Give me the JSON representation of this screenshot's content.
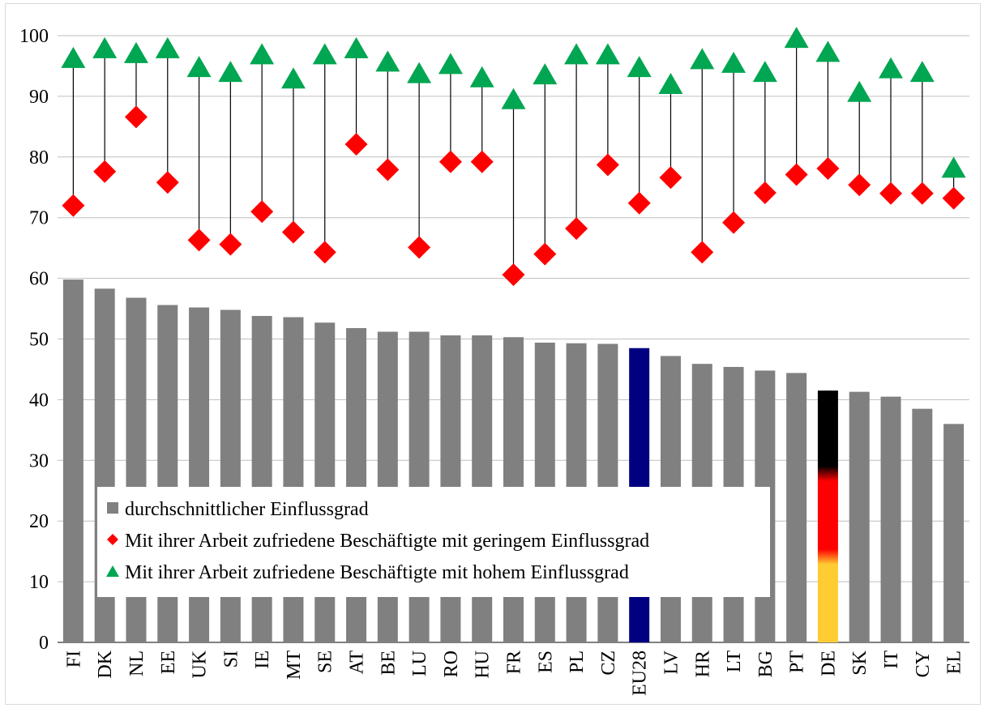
{
  "chart_data": {
    "type": "bar",
    "categories": [
      "FI",
      "DK",
      "NL",
      "EE",
      "UK",
      "SI",
      "IE",
      "MT",
      "SE",
      "AT",
      "BE",
      "LU",
      "RO",
      "HU",
      "FR",
      "ES",
      "PL",
      "CZ",
      "EU28",
      "LV",
      "HR",
      "LT",
      "BG",
      "PT",
      "DE",
      "SK",
      "IT",
      "CY",
      "EL"
    ],
    "series": [
      {
        "name": "durchschnittlicher Einflussgrad",
        "kind": "bar",
        "color": "#808080",
        "values": [
          59.8,
          58.3,
          56.8,
          55.6,
          55.2,
          54.8,
          53.8,
          53.6,
          52.7,
          51.8,
          51.2,
          51.2,
          50.6,
          50.6,
          50.3,
          49.4,
          49.3,
          49.2,
          48.5,
          47.2,
          45.9,
          45.4,
          44.8,
          44.4,
          41.5,
          41.3,
          40.5,
          38.5,
          36.0
        ]
      },
      {
        "name": "Mit ihrer Arbeit zufriedene Beschäftigte mit geringem Einflussgrad",
        "kind": "marker-diamond",
        "color": "#ff0000",
        "values": [
          72.0,
          77.6,
          86.6,
          75.8,
          66.3,
          65.6,
          71.0,
          67.6,
          64.3,
          82.1,
          77.9,
          65.1,
          79.2,
          79.2,
          60.6,
          64.0,
          68.2,
          78.7,
          72.4,
          76.6,
          64.3,
          69.2,
          74.1,
          77.1,
          78.1,
          75.4,
          74.0,
          74.0,
          73.2
        ]
      },
      {
        "name": "Mit ihrer Arbeit zufriedene Beschäftigte mit hohem Einflussgrad",
        "kind": "marker-triangle",
        "color": "#00a651",
        "values": [
          96.0,
          97.6,
          96.8,
          97.6,
          94.5,
          93.7,
          96.6,
          92.6,
          96.6,
          97.6,
          95.4,
          93.5,
          95.0,
          92.8,
          89.2,
          93.3,
          96.6,
          96.6,
          94.5,
          91.7,
          95.8,
          95.2,
          93.7,
          99.3,
          97.0,
          90.4,
          94.3,
          93.7,
          77.9
        ]
      }
    ],
    "highlights": {
      "EU28": {
        "color": "#000080"
      },
      "DE": {
        "colors": [
          "#000000",
          "#ff0000",
          "#ffcc33"
        ]
      }
    },
    "ylim": [
      0,
      100
    ],
    "yticks": [
      "0",
      "10",
      "20",
      "30",
      "40",
      "50",
      "60",
      "70",
      "80",
      "90",
      "100"
    ],
    "gridlines": true,
    "legend_position": "lower-left, inside plot",
    "title": "",
    "xlabel": "",
    "ylabel": ""
  }
}
